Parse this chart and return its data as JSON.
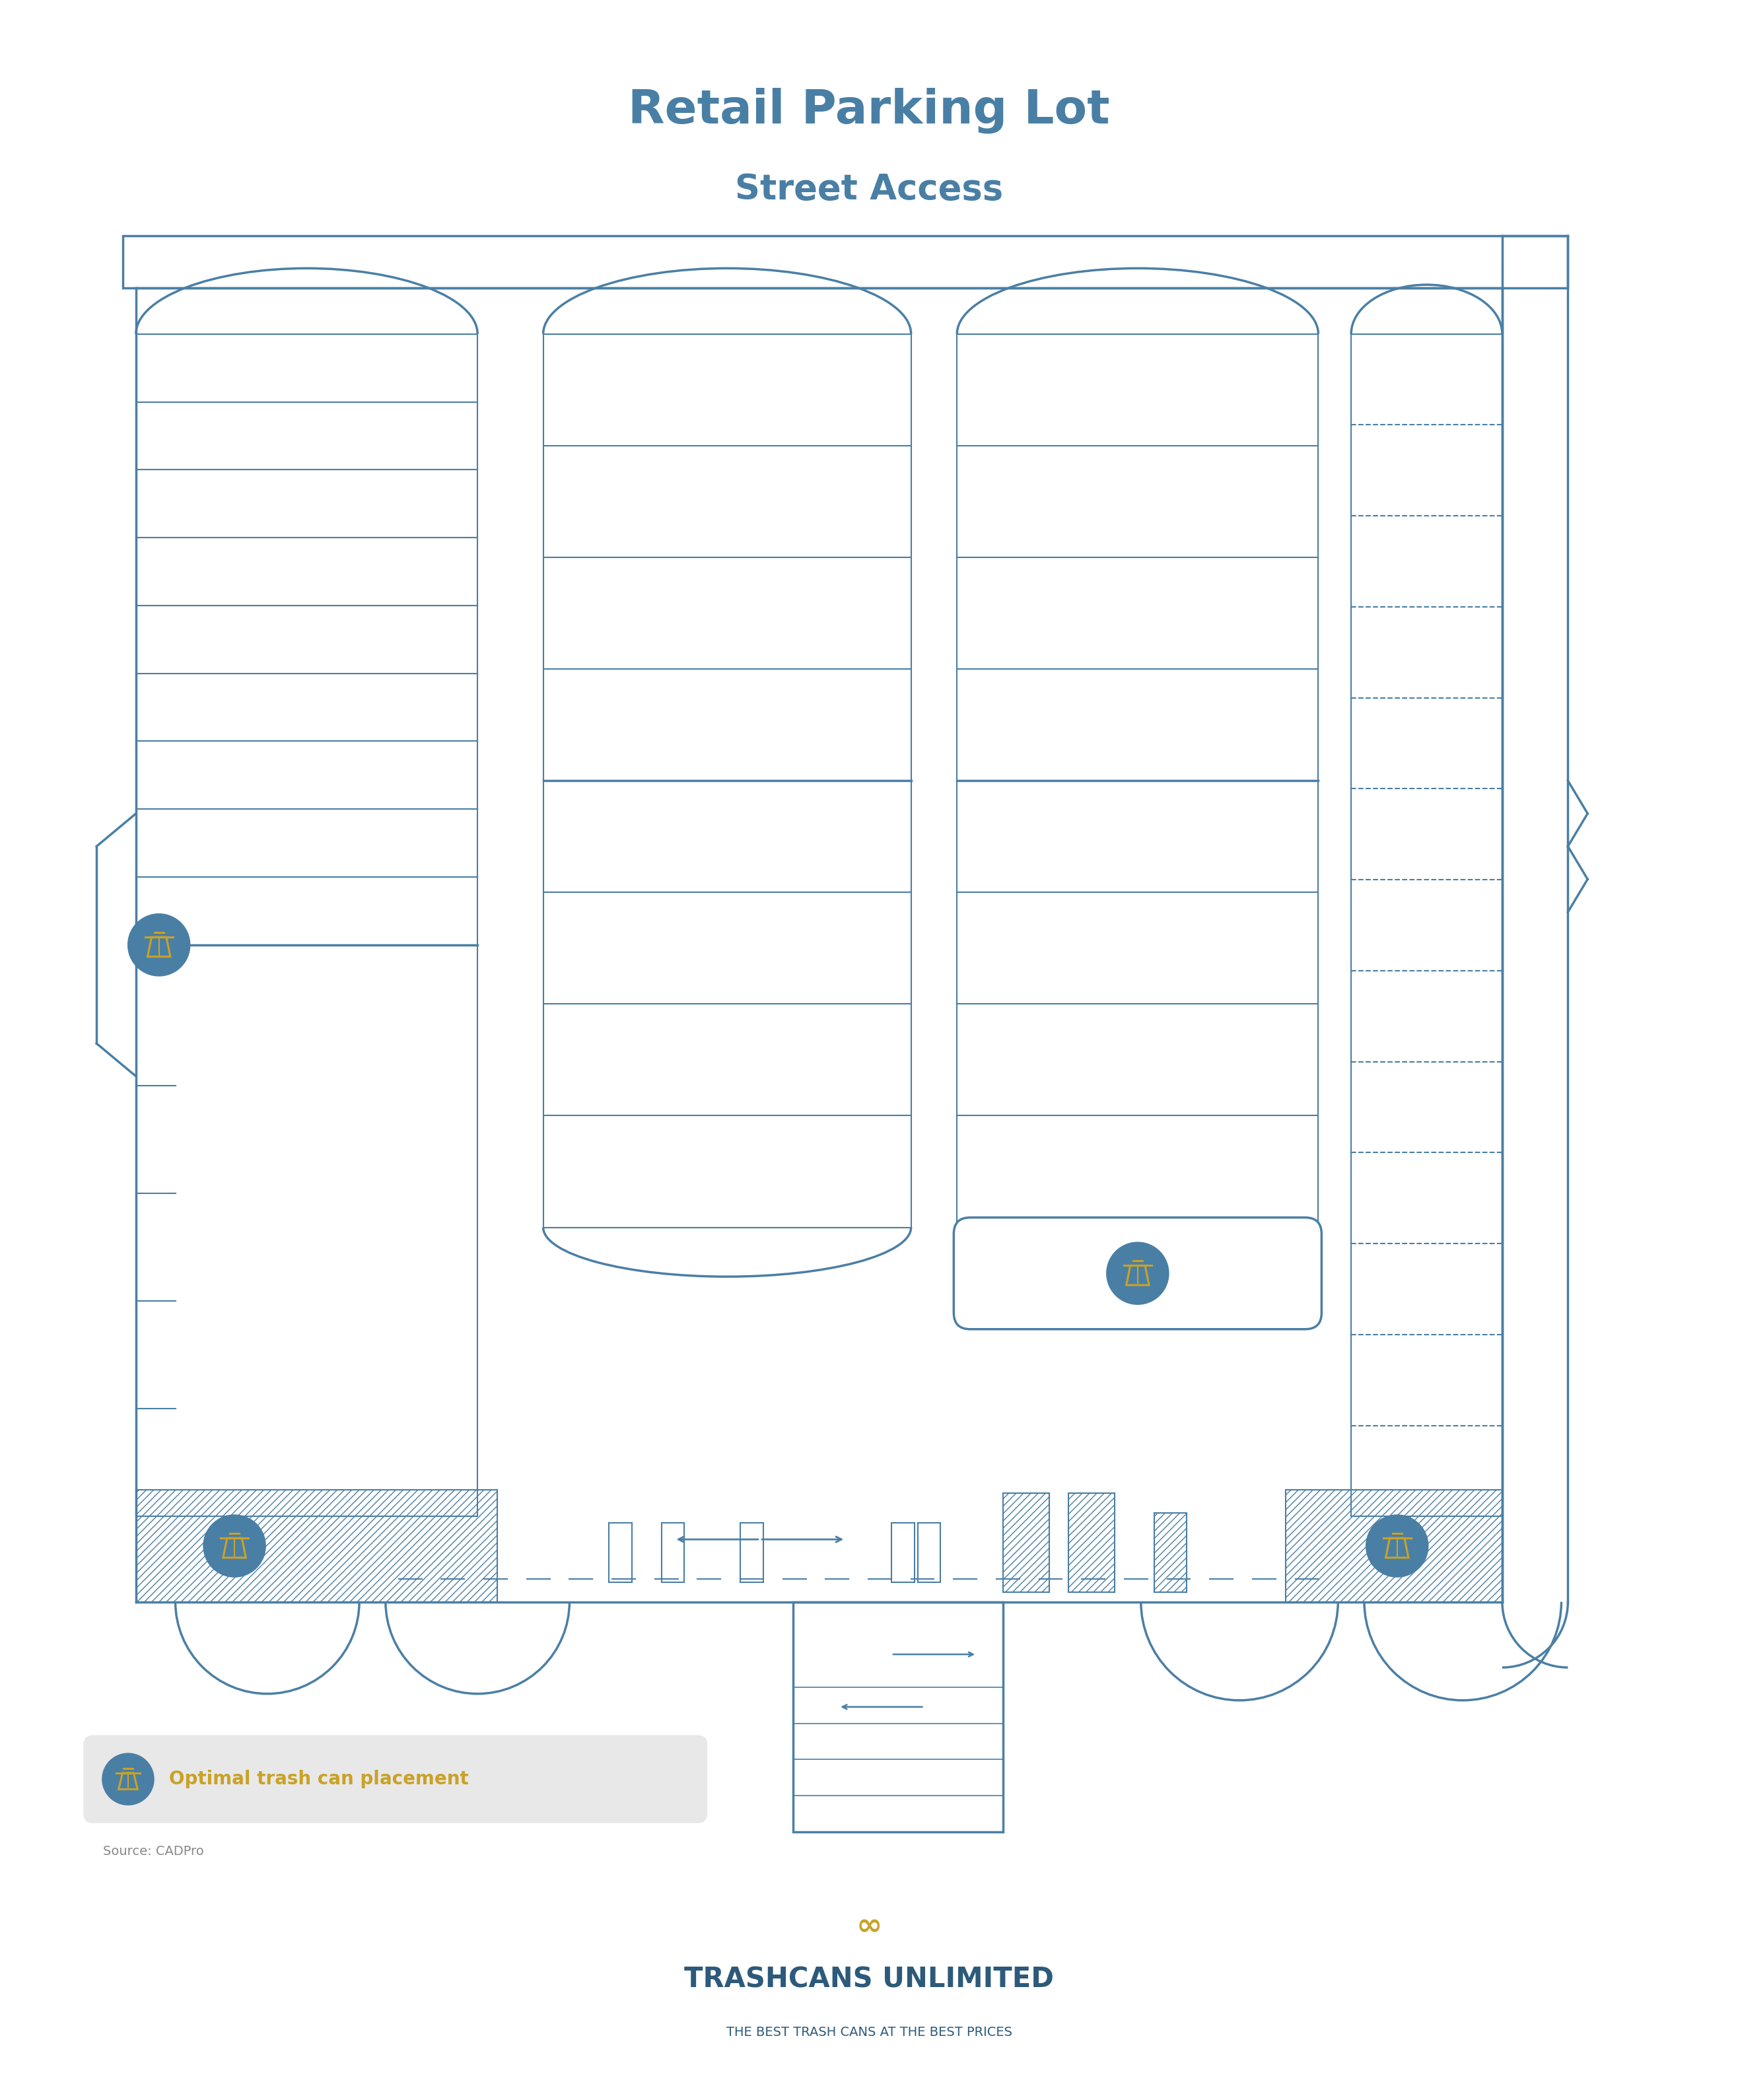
{
  "title": "Retail Parking Lot",
  "subtitle": "Street Access",
  "bg_color": "#ffffff",
  "line_color": "#4a7fa5",
  "trash_color": "#c9a227",
  "trash_bg": "#4a7fa5",
  "legend_label": "Optimal trash can placement",
  "legend_label_color": "#c9a227",
  "legend_bg": "#e8e8e8",
  "source_text": "Source: CADPro",
  "brand_name": "TRASHCANS UNLIMITED",
  "brand_tagline": "THE BEST TRASH CANS AT THE BEST PRICES",
  "brand_color": "#2d5a7a",
  "infinity_color": "#c9a227"
}
